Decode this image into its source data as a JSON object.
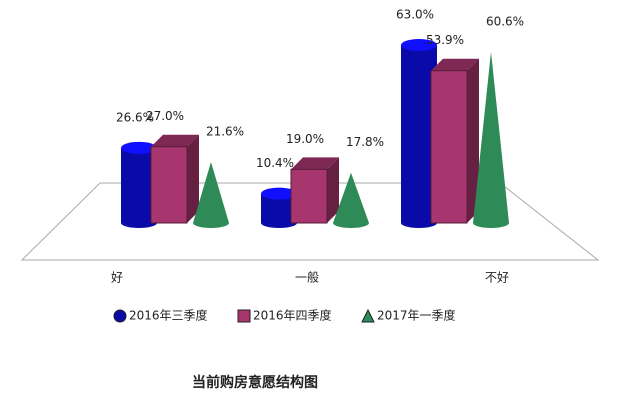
{
  "chart_data": {
    "type": "bar3d",
    "categories": [
      "好",
      "一般",
      "不好"
    ],
    "series": [
      {
        "name": "2016年三季度",
        "color": "#0a0aa8",
        "shape": "cylinder",
        "values": [
          26.6,
          10.4,
          63.0
        ],
        "value_labels": [
          "26.6%",
          "10.4%",
          "63.0%"
        ]
      },
      {
        "name": "2016年四季度",
        "color": "#a8366e",
        "shape": "box",
        "values": [
          27.0,
          19.0,
          53.9
        ],
        "value_labels": [
          "27.0%",
          "19.0%",
          "53.9%"
        ]
      },
      {
        "name": "2017年一季度",
        "color": "#2e8b57",
        "shape": "cone",
        "values": [
          21.6,
          17.8,
          60.6
        ],
        "value_labels": [
          "21.6%",
          "17.8%",
          "60.6%"
        ]
      }
    ],
    "ylim": [
      0,
      63.0
    ],
    "caption": "当前购房意愿结构图"
  }
}
